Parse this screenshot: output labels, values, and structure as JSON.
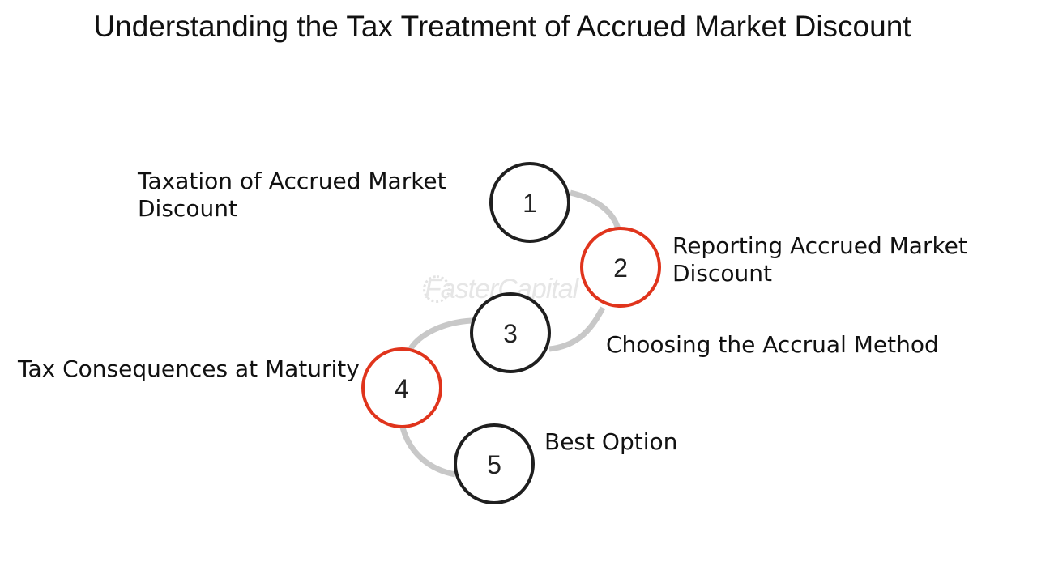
{
  "title": "Understanding the Tax Treatment of Accrued Market Discount",
  "watermark": "FasterCapital",
  "colors": {
    "ring_dark": "#1f1f1f",
    "ring_accent": "#e0341c",
    "connector": "#c8c8c8"
  },
  "steps": [
    {
      "number": "1",
      "label_lines": [
        "Taxation of Accrued Market",
        "Discount"
      ],
      "accent": false
    },
    {
      "number": "2",
      "label_lines": [
        "Reporting Accrued Market",
        "Discount"
      ],
      "accent": true
    },
    {
      "number": "3",
      "label_lines": [
        "Choosing the Accrual Method"
      ],
      "accent": false
    },
    {
      "number": "4",
      "label_lines": [
        "Tax Consequences at Maturity"
      ],
      "accent": true
    },
    {
      "number": "5",
      "label_lines": [
        "Best Option"
      ],
      "accent": false
    }
  ]
}
